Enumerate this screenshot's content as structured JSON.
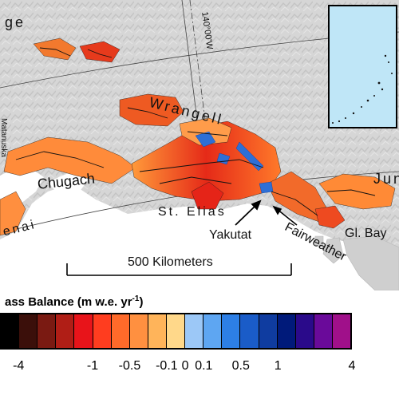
{
  "labels": {
    "north_range": "ge",
    "meridian": "140°00'W",
    "wrangell": "Wrangell",
    "chugach": "Chugach",
    "st_elias": "St. Elias",
    "kenai": "enai",
    "yakutat": "Yakutat",
    "fairweather": "Fairweather",
    "gl_bay": "Gl. Bay",
    "juneau": "Jun",
    "vertical_left": "Matanuska",
    "scale_bar": "500 Kilometers"
  },
  "legend": {
    "title_prefix": "ass Balance (m w.e. yr",
    "title_exponent": "-1",
    "title_suffix": ")",
    "tick_labels": [
      "-4",
      "-1",
      "-0.5",
      "-0.1",
      "0",
      "0.1",
      "0.5",
      "1",
      "4"
    ],
    "colors": [
      "#000000",
      "#3b0f0a",
      "#7a1a12",
      "#b01e16",
      "#e8141a",
      "#ff3d1f",
      "#ff6a2a",
      "#ff9040",
      "#ffb45a",
      "#ffd88a",
      "#9cc8f7",
      "#5ea6f2",
      "#2d7fe6",
      "#1a5cc8",
      "#0f3ca0",
      "#001a7a",
      "#2a0a8a",
      "#6a0a9a",
      "#a0108a"
    ]
  },
  "colors": {
    "background_land": "#d4d4d4",
    "ocean": "#ffffff",
    "inset_ocean": "#bfe6f7",
    "thinning": "#e2351f",
    "thickening": "#2d6fd6"
  }
}
